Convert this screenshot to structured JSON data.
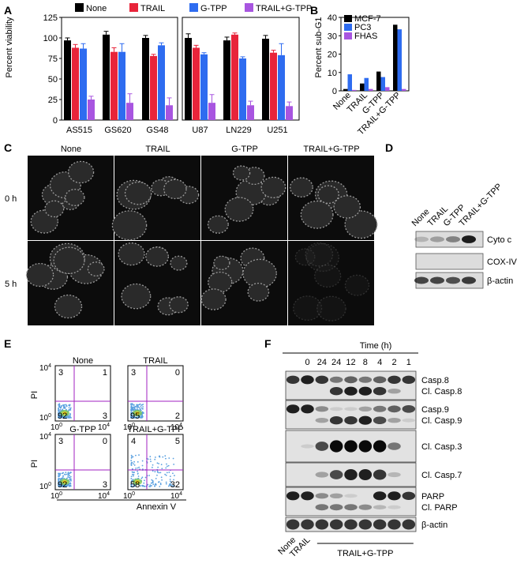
{
  "panel_labels": {
    "a": "A",
    "b": "B",
    "c": "C",
    "d": "D",
    "e": "E",
    "f": "F"
  },
  "legend_a": [
    {
      "label": "None",
      "color": "#000000"
    },
    {
      "label": "TRAIL",
      "color": "#e8243a"
    },
    {
      "label": "G-TPP",
      "color": "#2e6cf0"
    },
    {
      "label": "TRAIL+G-TPP",
      "color": "#a855e0"
    }
  ],
  "chart_data": [
    {
      "type": "bar",
      "panel": "A",
      "ylabel": "Percent viability",
      "ylim": [
        0,
        125
      ],
      "yticks": [
        "0",
        "25",
        "50",
        "75",
        "100",
        "125"
      ],
      "categories": [
        "AS515",
        "GS620",
        "GS48",
        "U87",
        "LN229",
        "U251"
      ],
      "series": [
        {
          "name": "None",
          "color": "#000000",
          "values": [
            97,
            104,
            100,
            100,
            97,
            99
          ],
          "errors": [
            3,
            4,
            3,
            5,
            4,
            4
          ]
        },
        {
          "name": "TRAIL",
          "color": "#e8243a",
          "values": [
            88,
            83,
            78,
            88,
            104,
            82
          ],
          "errors": [
            4,
            5,
            2,
            3,
            2,
            3
          ]
        },
        {
          "name": "G-TPP",
          "color": "#2e6cf0",
          "values": [
            87,
            83,
            91,
            80,
            75,
            79
          ],
          "errors": [
            6,
            10,
            3,
            2,
            2,
            14
          ]
        },
        {
          "name": "TRAIL+G-TPP",
          "color": "#a855e0",
          "values": [
            25,
            21,
            18,
            21,
            18,
            17
          ],
          "errors": [
            4,
            11,
            9,
            10,
            5,
            5
          ]
        }
      ]
    },
    {
      "type": "bar",
      "panel": "B",
      "ylabel": "Percent sub-G1",
      "ylim": [
        0,
        40
      ],
      "yticks": [
        "0",
        "10",
        "20",
        "30",
        "40"
      ],
      "categories": [
        "None",
        "TRAIL",
        "G-TPP",
        "TRAIL+G-TPP"
      ],
      "series": [
        {
          "name": "MCF-7",
          "color": "#000000",
          "values": [
            1,
            4,
            10.5,
            36
          ]
        },
        {
          "name": "PC3",
          "color": "#2e6cf0",
          "values": [
            9,
            7,
            7.5,
            33.5
          ]
        },
        {
          "name": "FHAS",
          "color": "#a855e0",
          "values": [
            0.5,
            1,
            2,
            1
          ]
        }
      ]
    }
  ],
  "panel_c": {
    "columns": [
      "None",
      "TRAIL",
      "G-TPP",
      "TRAIL+G-TPP"
    ],
    "rows": [
      "0 h",
      "5 h"
    ]
  },
  "panel_d": {
    "columns": [
      "None",
      "TRAIL",
      "G-TPP",
      "TRAIL+G-TPP"
    ],
    "bands": [
      "Cyto c",
      "COX-IV",
      "β-actin"
    ]
  },
  "panel_e": {
    "xlabel": "Annexin V",
    "ylabel": "PI",
    "axis_min": "10",
    "axis_max": "10",
    "exp_min": "0",
    "exp_max": "4",
    "plots": [
      {
        "title": "None",
        "q": [
          "3",
          "1",
          "92",
          "3"
        ]
      },
      {
        "title": "TRAIL",
        "q": [
          "3",
          "0",
          "95",
          "2"
        ]
      },
      {
        "title": "G-TPP",
        "q": [
          "3",
          "0",
          "92",
          "3"
        ]
      },
      {
        "title": "TRAIL+G-TPP",
        "q": [
          "4",
          "5",
          "58",
          "32"
        ]
      }
    ]
  },
  "panel_f": {
    "time_label": "Time (h)",
    "times": [
      "0",
      "24",
      "24",
      "12",
      "8",
      "4",
      "2",
      "1"
    ],
    "bands": [
      "Casp.8",
      "Cl. Casp.8",
      "Casp.9",
      "Cl. Casp.9",
      "Cl. Casp.3",
      "Cl. Casp.7",
      "PARP",
      "Cl. PARP",
      "β-actin"
    ],
    "bottom": [
      "None",
      "TRAIL",
      "TRAIL+G-TPP"
    ]
  }
}
